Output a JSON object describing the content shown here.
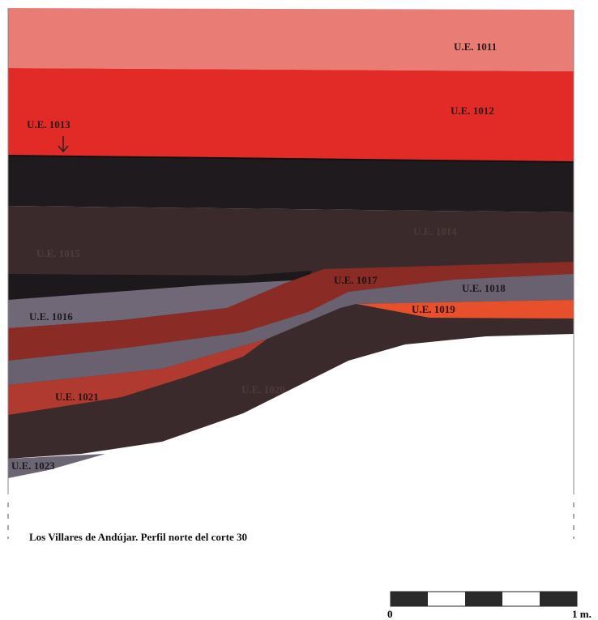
{
  "labels": [
    "U.E. 1011",
    "U.E. 1012",
    "U.E. 1013",
    "U.E. 1014",
    "U.E. 1015",
    "U.E. 1016",
    "U.E. 1017",
    "U.E. 1018",
    "U.E. 1019",
    "U.E. 1020",
    "U.E. 1021",
    "U.E. 1023"
  ],
  "caption": "Los Villares de Andújar. Perfil norte del corte 30",
  "scale": {
    "start": "0",
    "end": "1 m."
  }
}
